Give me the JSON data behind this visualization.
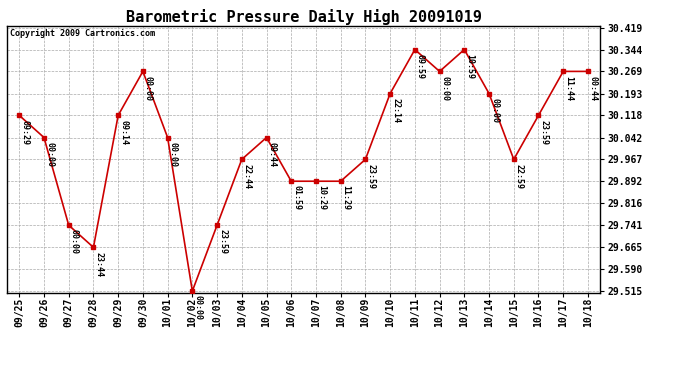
{
  "title": "Barometric Pressure Daily High 20091019",
  "copyright": "Copyright 2009 Cartronics.com",
  "x_labels": [
    "09/25",
    "09/26",
    "09/27",
    "09/28",
    "09/29",
    "09/30",
    "10/01",
    "10/02",
    "10/03",
    "10/04",
    "10/05",
    "10/06",
    "10/07",
    "10/08",
    "10/09",
    "10/10",
    "10/11",
    "10/12",
    "10/13",
    "10/14",
    "10/15",
    "10/16",
    "10/17",
    "10/18"
  ],
  "y_values": [
    30.118,
    30.042,
    29.741,
    29.665,
    30.118,
    30.269,
    30.042,
    29.515,
    29.741,
    29.967,
    30.042,
    29.892,
    29.892,
    29.892,
    29.967,
    30.193,
    30.344,
    30.269,
    30.344,
    30.193,
    29.967,
    30.118,
    30.269,
    30.269
  ],
  "time_labels": [
    "09:29",
    "00:00",
    "00:00",
    "23:44",
    "09:14",
    "00:00",
    "00:00",
    "00:00",
    "23:59",
    "22:44",
    "09:44",
    "01:59",
    "10:29",
    "11:29",
    "23:59",
    "22:14",
    "09:59",
    "00:00",
    "10:59",
    "00:00",
    "22:59",
    "23:59",
    "11:44",
    "00:44"
  ],
  "y_min": 29.515,
  "y_max": 30.419,
  "y_ticks": [
    29.515,
    29.59,
    29.665,
    29.741,
    29.816,
    29.892,
    29.967,
    30.042,
    30.118,
    30.193,
    30.269,
    30.344,
    30.419
  ],
  "line_color": "#cc0000",
  "marker_color": "#cc0000",
  "bg_color": "#ffffff",
  "grid_color": "#aaaaaa",
  "title_fontsize": 11,
  "tick_fontsize": 7,
  "annot_fontsize": 6
}
